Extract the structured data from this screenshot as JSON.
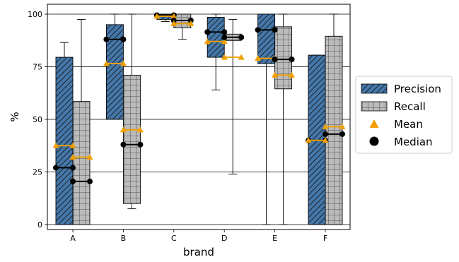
{
  "chart_data": {
    "type": "bar",
    "xlabel": "brand",
    "ylabel": "%",
    "ylim": [
      0,
      105
    ],
    "yticks": [
      0,
      25,
      50,
      75,
      100
    ],
    "grid": "horizontal",
    "categories": [
      "A",
      "B",
      "C",
      "D",
      "E",
      "F"
    ],
    "legend_position": "right",
    "legend": [
      "Precision",
      "Recall",
      "Mean",
      "Median"
    ],
    "series": [
      {
        "name": "Precision",
        "color": "#4477aa",
        "hatch": "diagonal",
        "box_low": [
          0,
          50,
          97.5,
          79.5,
          76.5,
          0
        ],
        "box_high": [
          79.5,
          95,
          100,
          98.5,
          100,
          80.5
        ],
        "whisker_low": [
          0,
          50,
          96.5,
          64,
          0,
          0
        ],
        "whisker_high": [
          86.5,
          100,
          100,
          100,
          100,
          80.5
        ],
        "mean": [
          37.5,
          76.5,
          99,
          87,
          79,
          40
        ],
        "median": [
          27,
          88,
          99.5,
          91.5,
          92.5,
          40
        ]
      },
      {
        "name": "Recall",
        "color": "#bbbbbb",
        "hatch": "grid",
        "box_low": [
          0,
          10,
          93.5,
          87.5,
          64.5,
          0
        ],
        "box_high": [
          58.5,
          71,
          100,
          90.5,
          94,
          89.5
        ],
        "whisker_low": [
          0,
          7.5,
          88,
          24,
          0,
          0
        ],
        "whisker_high": [
          97.5,
          100,
          100,
          97.5,
          100,
          100
        ],
        "mean": [
          32,
          45,
          95.5,
          79.5,
          71,
          46.5
        ],
        "median": [
          20.5,
          38,
          97,
          89,
          78.5,
          43
        ]
      }
    ],
    "mean_color": "#f0a000",
    "median_color": "#000000"
  }
}
